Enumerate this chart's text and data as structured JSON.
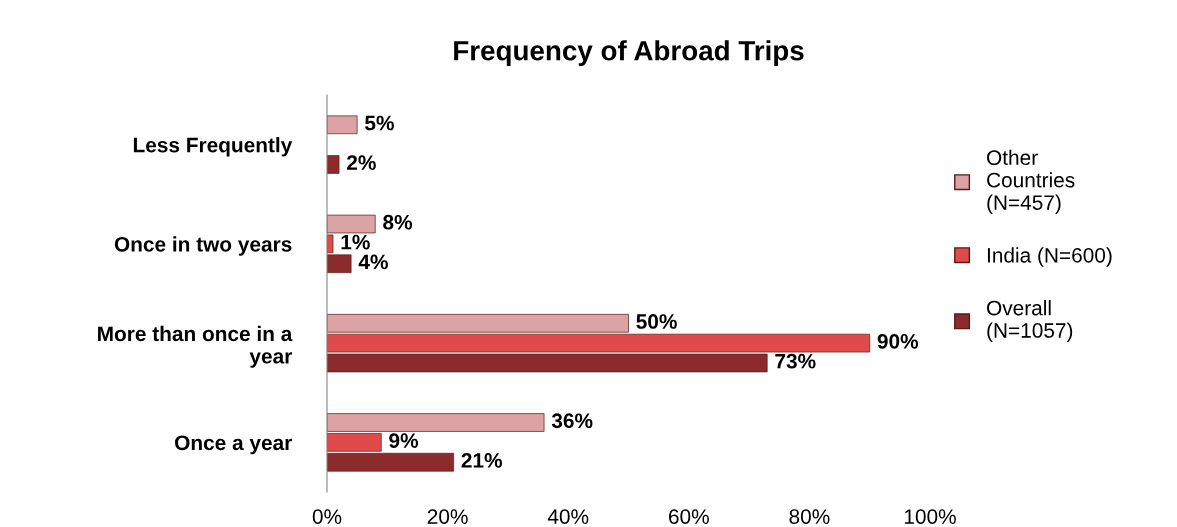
{
  "chart_data": {
    "type": "bar",
    "orientation": "horizontal",
    "title": "Frequency of Abroad Trips",
    "categories": [
      "Less Frequently",
      "Once in two years",
      "More than once in a\nyear",
      "Once a year"
    ],
    "series": [
      {
        "name": "Other\nCountries\n(N=457)",
        "color": "#dba3a3",
        "values": [
          5,
          8,
          50,
          36
        ],
        "value_labels": [
          "5%",
          "8%",
          "50%",
          "36%"
        ]
      },
      {
        "name": "India (N=600)",
        "color": "#e04a4a",
        "values": [
          null,
          1,
          90,
          9
        ],
        "value_labels": [
          null,
          "1%",
          "90%",
          "9%"
        ]
      },
      {
        "name": "Overall\n(N=1057)",
        "color": "#8c2b2b",
        "values": [
          2,
          4,
          73,
          21
        ],
        "value_labels": [
          "2%",
          "4%",
          "73%",
          "21%"
        ]
      }
    ],
    "xlim": [
      0,
      100
    ],
    "xticks": [
      {
        "value": 0,
        "label": "0%"
      },
      {
        "value": 20,
        "label": "20%"
      },
      {
        "value": 40,
        "label": "40%"
      },
      {
        "value": 60,
        "label": "60%"
      },
      {
        "value": 80,
        "label": "80%"
      },
      {
        "value": 100,
        "label": "100%"
      }
    ],
    "grid": false,
    "legend": "right"
  }
}
